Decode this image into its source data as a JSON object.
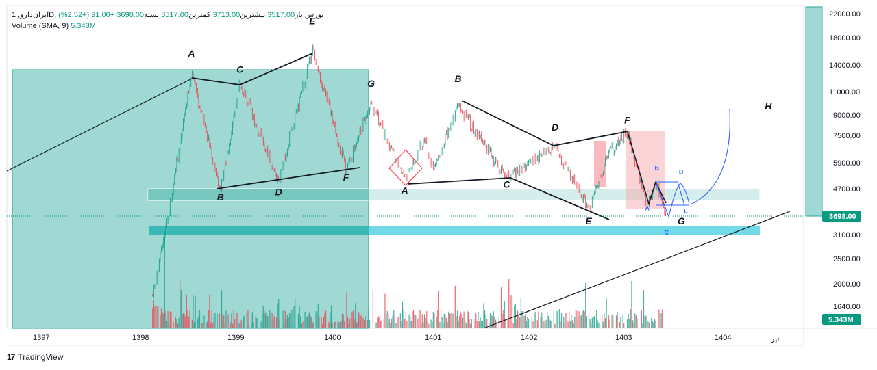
{
  "legend": {
    "symbol": "ایران‌دارو, 1D, بورس",
    "open_label": "باز",
    "open_value": "3517.00",
    "high_label": "بیشترین",
    "high_value": "3713.00",
    "low_label": "کمترین",
    "low_value": "3517.00",
    "close_label": "بسته",
    "close_value": "3698.00",
    "change": "+91.00 (+2.52%)",
    "volume_label": "Volume",
    "volume_params": "(SMA, 9)",
    "volume_value": "5.343M"
  },
  "brand": {
    "logo": "17",
    "name": "TradingView"
  },
  "colors": {
    "up": "#089981",
    "down": "#f23645",
    "teal_zone": "#80cbc4",
    "pink_zone": "#f7a9b0",
    "cyan_band": "#4dd0e1",
    "trend_line": "#131722",
    "forecast": "#2962ff"
  },
  "chart_data": {
    "type": "candlestick",
    "y_scale": "log",
    "ylim": [
      1400,
      24000
    ],
    "y_ticks": [
      "22000.00",
      "18000.00",
      "14000.00",
      "11000.00",
      "9000.00",
      "7500.00",
      "5900.00",
      "4700.00",
      "3100.00",
      "2500.00",
      "2000.00",
      "1640.00"
    ],
    "x_ticks": [
      "1397",
      "1398",
      "1399",
      "1400",
      "1401",
      "1402",
      "1403",
      "1404",
      "تیر"
    ],
    "last_price_label": "3698.00",
    "last_volume_label": "5.343M",
    "price_path": [
      {
        "x": 1398.15,
        "y": 1800
      },
      {
        "x": 1398.3,
        "y": 3500
      },
      {
        "x": 1398.55,
        "y": 13000
      },
      {
        "x": 1398.85,
        "y": 4600
      },
      {
        "x": 1399.05,
        "y": 12000
      },
      {
        "x": 1399.45,
        "y": 5000
      },
      {
        "x": 1399.8,
        "y": 16000
      },
      {
        "x": 1400.15,
        "y": 5500
      },
      {
        "x": 1400.4,
        "y": 10000
      },
      {
        "x": 1400.75,
        "y": 5000
      },
      {
        "x": 1400.95,
        "y": 7200
      },
      {
        "x": 1401.05,
        "y": 5600
      },
      {
        "x": 1401.3,
        "y": 9800
      },
      {
        "x": 1401.8,
        "y": 5100
      },
      {
        "x": 1402.3,
        "y": 6800
      },
      {
        "x": 1402.65,
        "y": 3900
      },
      {
        "x": 1402.85,
        "y": 6400
      },
      {
        "x": 1403.05,
        "y": 7700
      },
      {
        "x": 1403.25,
        "y": 4000
      },
      {
        "x": 1403.35,
        "y": 4900
      },
      {
        "x": 1403.45,
        "y": 3698
      }
    ],
    "wave_labels": [
      {
        "text": "A",
        "x": 1398.55,
        "y": 15000
      },
      {
        "text": "B",
        "x": 1398.85,
        "y": 4200
      },
      {
        "text": "C",
        "x": 1399.05,
        "y": 13000
      },
      {
        "text": "D",
        "x": 1399.45,
        "y": 4400
      },
      {
        "text": "E",
        "x": 1399.8,
        "y": 20000
      },
      {
        "text": "F",
        "x": 1400.15,
        "y": 5000
      },
      {
        "text": "G",
        "x": 1400.4,
        "y": 11500
      },
      {
        "text": "A",
        "x": 1400.75,
        "y": 4450
      },
      {
        "text": "B",
        "x": 1401.3,
        "y": 12000
      },
      {
        "text": "C",
        "x": 1401.8,
        "y": 4700
      },
      {
        "text": "D",
        "x": 1402.3,
        "y": 7800
      },
      {
        "text": "E",
        "x": 1402.65,
        "y": 3400
      },
      {
        "text": "F",
        "x": 1403.05,
        "y": 8300
      },
      {
        "text": "G",
        "x": 1403.6,
        "y": 3400
      },
      {
        "text": "H",
        "x": 1404.5,
        "y": 9400
      }
    ],
    "forecast_labels": [
      {
        "text": "A",
        "x": 1403.25,
        "y": 3850
      },
      {
        "text": "B",
        "x": 1403.35,
        "y": 5500
      },
      {
        "text": "C",
        "x": 1403.45,
        "y": 3100
      },
      {
        "text": "D",
        "x": 1403.6,
        "y": 5300
      },
      {
        "text": "E",
        "x": 1403.65,
        "y": 3750
      }
    ]
  }
}
